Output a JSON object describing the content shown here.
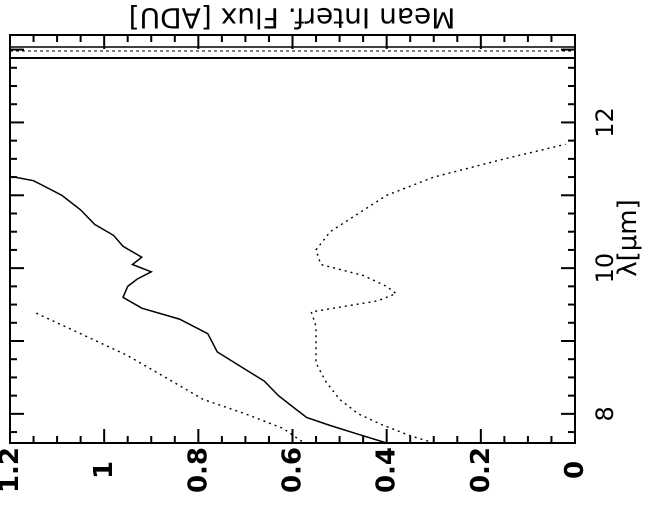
{
  "chart_data": {
    "type": "line",
    "orientation": "rotated-90",
    "title": "",
    "xlabel": "λ[μm]",
    "ylabel": "Mean Interf. Flux [ADU]",
    "xlim": [
      7.6,
      13.2
    ],
    "ylim": [
      0,
      1.2
    ],
    "x_ticks": [
      {
        "value": 8,
        "label": "8"
      },
      {
        "value": 10,
        "label": "10"
      },
      {
        "value": 12,
        "label": "12"
      }
    ],
    "y_ticks": [
      {
        "value": 0,
        "label": "0"
      },
      {
        "value": 0.2,
        "label": "0.2"
      },
      {
        "value": 0.4,
        "label": "0.4"
      },
      {
        "value": 0.6,
        "label": "0.6"
      },
      {
        "value": 0.8,
        "label": "0.8"
      },
      {
        "value": 1.0,
        "label": "1"
      },
      {
        "value": 1.2,
        "label": "1.2"
      }
    ],
    "grid": false,
    "series": [
      {
        "style": "solid",
        "x": [
          7.6,
          7.72,
          7.84,
          7.95,
          8.1,
          8.25,
          8.45,
          8.65,
          8.85,
          9.1,
          9.3,
          9.45,
          9.6,
          9.75,
          9.85,
          9.95,
          10.05,
          10.15,
          10.3,
          10.45,
          10.6,
          10.8,
          11.0,
          11.1,
          11.2,
          11.25
        ],
        "y": [
          0.4,
          0.46,
          0.52,
          0.57,
          0.6,
          0.63,
          0.66,
          0.71,
          0.76,
          0.78,
          0.84,
          0.92,
          0.96,
          0.95,
          0.93,
          0.9,
          0.94,
          0.92,
          0.96,
          0.98,
          1.02,
          1.05,
          1.09,
          1.12,
          1.15,
          1.19
        ]
      },
      {
        "style": "dotted",
        "x": [
          7.6,
          7.7,
          7.85,
          8.0,
          8.2,
          8.45,
          8.7,
          8.95,
          9.2,
          9.4,
          9.55,
          9.65,
          9.75,
          9.9,
          10.05,
          10.25,
          10.5,
          10.75,
          11.0,
          11.25,
          11.5,
          11.7
        ],
        "y": [
          0.3,
          0.35,
          0.41,
          0.46,
          0.5,
          0.53,
          0.55,
          0.55,
          0.55,
          0.56,
          0.42,
          0.38,
          0.4,
          0.45,
          0.54,
          0.55,
          0.52,
          0.46,
          0.4,
          0.3,
          0.15,
          0.02
        ]
      },
      {
        "style": "dotted",
        "x": [
          7.62,
          7.8,
          8.0,
          8.2,
          8.5,
          8.8,
          9.1,
          9.4
        ],
        "y": [
          0.58,
          0.62,
          0.7,
          0.79,
          0.87,
          0.95,
          1.05,
          1.15
        ]
      }
    ]
  }
}
